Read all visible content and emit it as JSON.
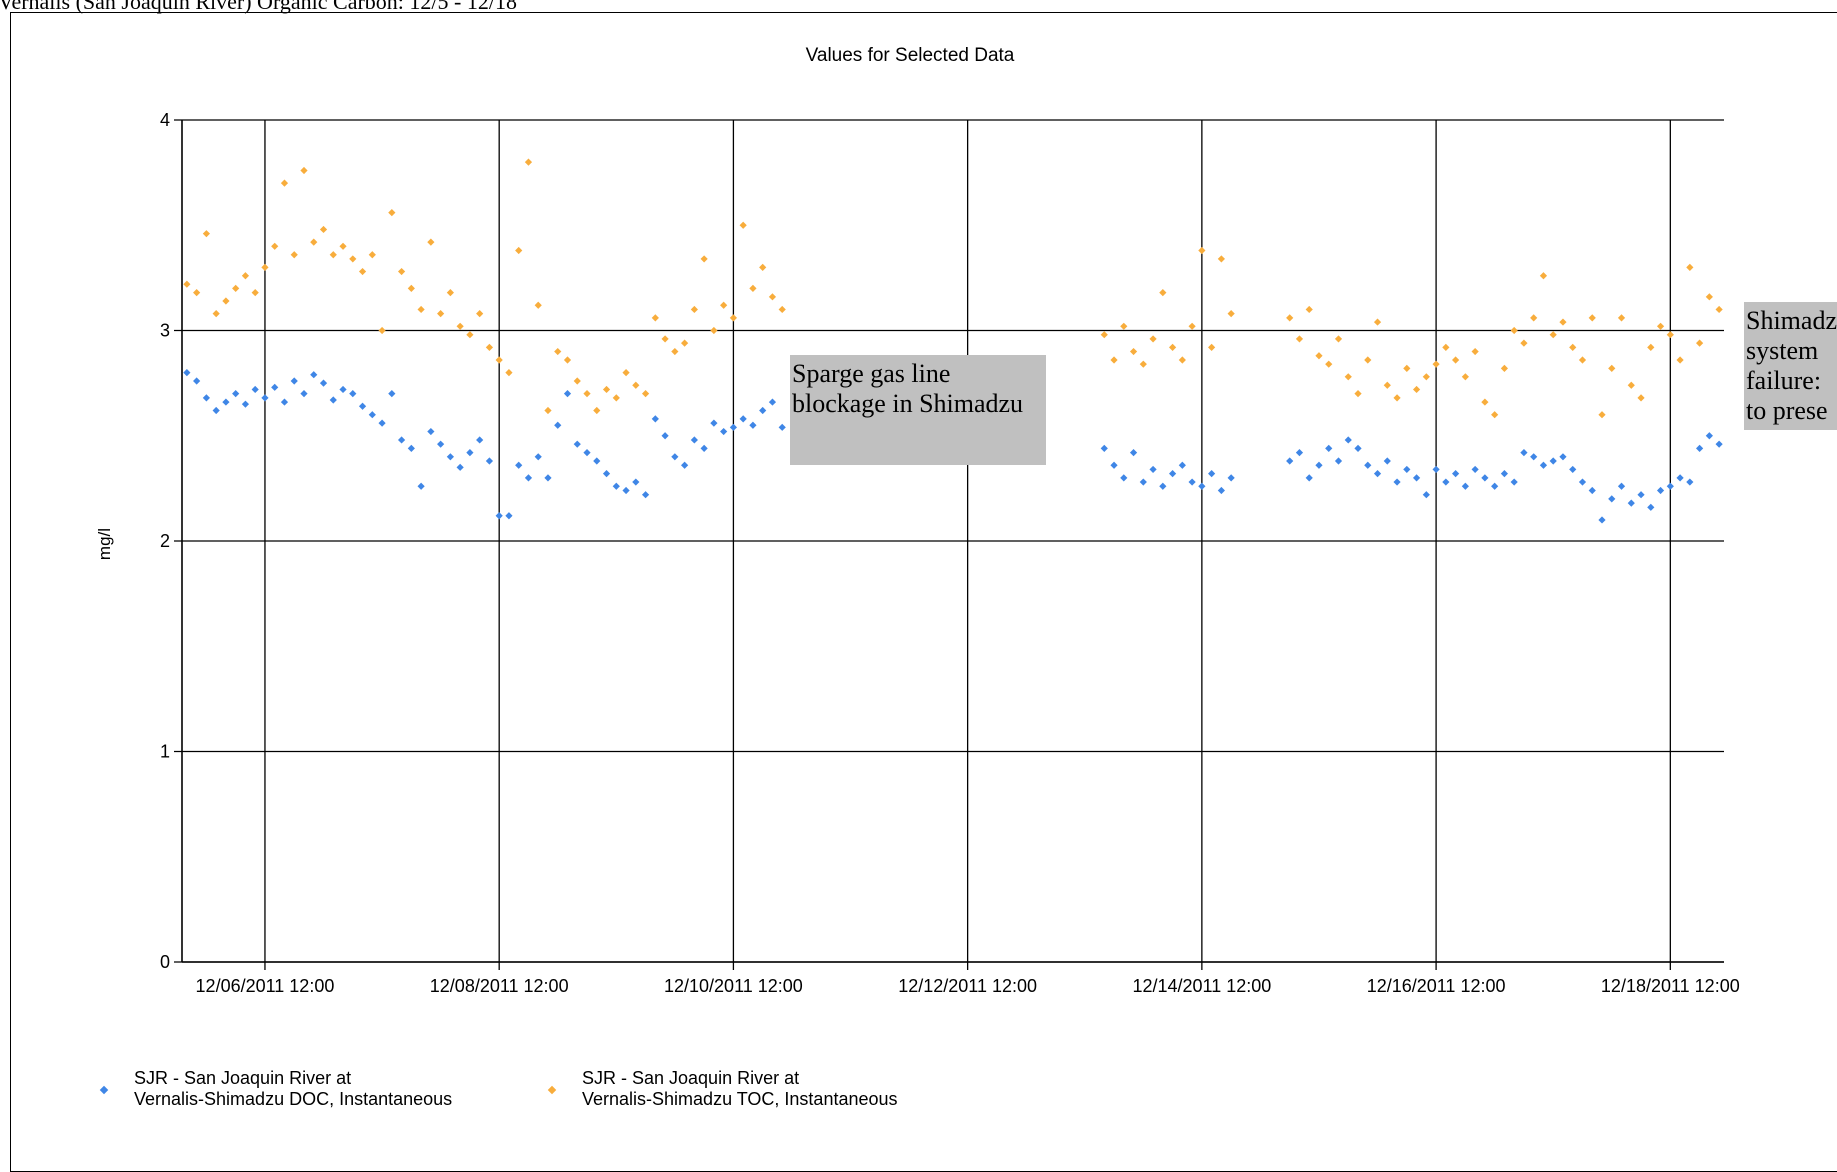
{
  "page_title": "Vernalis (San Joaquin River) Organic Carbon: 12/5 - 12/18",
  "annotations": [
    {
      "text": "Sparge gas line blockage in Shimadzu"
    },
    {
      "text": "Shimadzu system failure: to prese"
    }
  ],
  "colors": {
    "doc": "#3f86e6",
    "toc": "#f8ad3c",
    "note_bg": "#c0c0c0",
    "grid": "#000000"
  },
  "chart_data": {
    "type": "scatter",
    "title": "Values for Selected Data",
    "ylabel": "mg/l",
    "xlabel": "",
    "ylim": [
      0,
      4
    ],
    "yticks": [
      "0",
      "1",
      "2",
      "3",
      "4"
    ],
    "xlim": [
      "2011-12-05 19:00",
      "2011-12-18 23:00"
    ],
    "xticks": [
      "12/06/2011 12:00",
      "12/08/2011 12:00",
      "12/10/2011 12:00",
      "12/12/2011 12:00",
      "12/14/2011 12:00",
      "12/16/2011 12:00",
      "12/18/2011 12:00"
    ],
    "grid": true,
    "legend_position": "bottom-left",
    "series": [
      {
        "name": "SJR - San Joaquin River at Vernalis-Shimadzu DOC, Instantaneous",
        "color": "#3f86e6",
        "points": [
          [
            "2011-12-05 20:00",
            2.8
          ],
          [
            "2011-12-05 22:00",
            2.76
          ],
          [
            "2011-12-06 00:00",
            2.68
          ],
          [
            "2011-12-06 02:00",
            2.62
          ],
          [
            "2011-12-06 04:00",
            2.66
          ],
          [
            "2011-12-06 06:00",
            2.7
          ],
          [
            "2011-12-06 08:00",
            2.65
          ],
          [
            "2011-12-06 10:00",
            2.72
          ],
          [
            "2011-12-06 12:00",
            2.68
          ],
          [
            "2011-12-06 14:00",
            2.73
          ],
          [
            "2011-12-06 16:00",
            2.66
          ],
          [
            "2011-12-06 18:00",
            2.76
          ],
          [
            "2011-12-06 20:00",
            2.7
          ],
          [
            "2011-12-06 22:00",
            2.79
          ],
          [
            "2011-12-07 00:00",
            2.75
          ],
          [
            "2011-12-07 02:00",
            2.67
          ],
          [
            "2011-12-07 04:00",
            2.72
          ],
          [
            "2011-12-07 06:00",
            2.7
          ],
          [
            "2011-12-07 08:00",
            2.64
          ],
          [
            "2011-12-07 10:00",
            2.6
          ],
          [
            "2011-12-07 12:00",
            2.56
          ],
          [
            "2011-12-07 14:00",
            2.7
          ],
          [
            "2011-12-07 16:00",
            2.48
          ],
          [
            "2011-12-07 18:00",
            2.44
          ],
          [
            "2011-12-07 20:00",
            2.26
          ],
          [
            "2011-12-07 22:00",
            2.52
          ],
          [
            "2011-12-08 00:00",
            2.46
          ],
          [
            "2011-12-08 02:00",
            2.4
          ],
          [
            "2011-12-08 04:00",
            2.35
          ],
          [
            "2011-12-08 06:00",
            2.42
          ],
          [
            "2011-12-08 08:00",
            2.48
          ],
          [
            "2011-12-08 10:00",
            2.38
          ],
          [
            "2011-12-08 12:00",
            2.12
          ],
          [
            "2011-12-08 14:00",
            2.12
          ],
          [
            "2011-12-08 16:00",
            2.36
          ],
          [
            "2011-12-08 18:00",
            2.3
          ],
          [
            "2011-12-08 20:00",
            2.4
          ],
          [
            "2011-12-08 22:00",
            2.3
          ],
          [
            "2011-12-09 00:00",
            2.55
          ],
          [
            "2011-12-09 02:00",
            2.7
          ],
          [
            "2011-12-09 04:00",
            2.46
          ],
          [
            "2011-12-09 06:00",
            2.42
          ],
          [
            "2011-12-09 08:00",
            2.38
          ],
          [
            "2011-12-09 10:00",
            2.32
          ],
          [
            "2011-12-09 12:00",
            2.26
          ],
          [
            "2011-12-09 14:00",
            2.24
          ],
          [
            "2011-12-09 16:00",
            2.28
          ],
          [
            "2011-12-09 18:00",
            2.22
          ],
          [
            "2011-12-09 20:00",
            2.58
          ],
          [
            "2011-12-09 22:00",
            2.5
          ],
          [
            "2011-12-10 00:00",
            2.4
          ],
          [
            "2011-12-10 02:00",
            2.36
          ],
          [
            "2011-12-10 04:00",
            2.48
          ],
          [
            "2011-12-10 06:00",
            2.44
          ],
          [
            "2011-12-10 08:00",
            2.56
          ],
          [
            "2011-12-10 10:00",
            2.52
          ],
          [
            "2011-12-10 12:00",
            2.54
          ],
          [
            "2011-12-10 14:00",
            2.58
          ],
          [
            "2011-12-10 16:00",
            2.55
          ],
          [
            "2011-12-10 18:00",
            2.62
          ],
          [
            "2011-12-10 20:00",
            2.66
          ],
          [
            "2011-12-10 22:00",
            2.54
          ],
          [
            "2011-12-13 16:00",
            2.44
          ],
          [
            "2011-12-13 18:00",
            2.36
          ],
          [
            "2011-12-13 20:00",
            2.3
          ],
          [
            "2011-12-13 22:00",
            2.42
          ],
          [
            "2011-12-14 00:00",
            2.28
          ],
          [
            "2011-12-14 02:00",
            2.34
          ],
          [
            "2011-12-14 04:00",
            2.26
          ],
          [
            "2011-12-14 06:00",
            2.32
          ],
          [
            "2011-12-14 08:00",
            2.36
          ],
          [
            "2011-12-14 10:00",
            2.28
          ],
          [
            "2011-12-14 12:00",
            2.26
          ],
          [
            "2011-12-14 14:00",
            2.32
          ],
          [
            "2011-12-14 16:00",
            2.24
          ],
          [
            "2011-12-14 18:00",
            2.3
          ],
          [
            "2011-12-15 06:00",
            2.38
          ],
          [
            "2011-12-15 08:00",
            2.42
          ],
          [
            "2011-12-15 10:00",
            2.3
          ],
          [
            "2011-12-15 12:00",
            2.36
          ],
          [
            "2011-12-15 14:00",
            2.44
          ],
          [
            "2011-12-15 16:00",
            2.38
          ],
          [
            "2011-12-15 18:00",
            2.48
          ],
          [
            "2011-12-15 20:00",
            2.44
          ],
          [
            "2011-12-15 22:00",
            2.36
          ],
          [
            "2011-12-16 00:00",
            2.32
          ],
          [
            "2011-12-16 02:00",
            2.38
          ],
          [
            "2011-12-16 04:00",
            2.28
          ],
          [
            "2011-12-16 06:00",
            2.34
          ],
          [
            "2011-12-16 08:00",
            2.3
          ],
          [
            "2011-12-16 10:00",
            2.22
          ],
          [
            "2011-12-16 12:00",
            2.34
          ],
          [
            "2011-12-16 14:00",
            2.28
          ],
          [
            "2011-12-16 16:00",
            2.32
          ],
          [
            "2011-12-16 18:00",
            2.26
          ],
          [
            "2011-12-16 20:00",
            2.34
          ],
          [
            "2011-12-16 22:00",
            2.3
          ],
          [
            "2011-12-17 00:00",
            2.26
          ],
          [
            "2011-12-17 02:00",
            2.32
          ],
          [
            "2011-12-17 04:00",
            2.28
          ],
          [
            "2011-12-17 06:00",
            2.42
          ],
          [
            "2011-12-17 08:00",
            2.4
          ],
          [
            "2011-12-17 10:00",
            2.36
          ],
          [
            "2011-12-17 12:00",
            2.38
          ],
          [
            "2011-12-17 14:00",
            2.4
          ],
          [
            "2011-12-17 16:00",
            2.34
          ],
          [
            "2011-12-17 18:00",
            2.28
          ],
          [
            "2011-12-17 20:00",
            2.24
          ],
          [
            "2011-12-17 22:00",
            2.1
          ],
          [
            "2011-12-18 00:00",
            2.2
          ],
          [
            "2011-12-18 02:00",
            2.26
          ],
          [
            "2011-12-18 04:00",
            2.18
          ],
          [
            "2011-12-18 06:00",
            2.22
          ],
          [
            "2011-12-18 08:00",
            2.16
          ],
          [
            "2011-12-18 10:00",
            2.24
          ],
          [
            "2011-12-18 12:00",
            2.26
          ],
          [
            "2011-12-18 14:00",
            2.3
          ],
          [
            "2011-12-18 16:00",
            2.28
          ],
          [
            "2011-12-18 18:00",
            2.44
          ],
          [
            "2011-12-18 20:00",
            2.5
          ],
          [
            "2011-12-18 22:00",
            2.46
          ]
        ]
      },
      {
        "name": "SJR - San Joaquin River at Vernalis-Shimadzu TOC, Instantaneous",
        "color": "#f8ad3c",
        "points": [
          [
            "2011-12-05 20:00",
            3.22
          ],
          [
            "2011-12-05 22:00",
            3.18
          ],
          [
            "2011-12-06 00:00",
            3.46
          ],
          [
            "2011-12-06 02:00",
            3.08
          ],
          [
            "2011-12-06 04:00",
            3.14
          ],
          [
            "2011-12-06 06:00",
            3.2
          ],
          [
            "2011-12-06 08:00",
            3.26
          ],
          [
            "2011-12-06 10:00",
            3.18
          ],
          [
            "2011-12-06 12:00",
            3.3
          ],
          [
            "2011-12-06 14:00",
            3.4
          ],
          [
            "2011-12-06 16:00",
            3.7
          ],
          [
            "2011-12-06 18:00",
            3.36
          ],
          [
            "2011-12-06 20:00",
            3.76
          ],
          [
            "2011-12-06 22:00",
            3.42
          ],
          [
            "2011-12-07 00:00",
            3.48
          ],
          [
            "2011-12-07 02:00",
            3.36
          ],
          [
            "2011-12-07 04:00",
            3.4
          ],
          [
            "2011-12-07 06:00",
            3.34
          ],
          [
            "2011-12-07 08:00",
            3.28
          ],
          [
            "2011-12-07 10:00",
            3.36
          ],
          [
            "2011-12-07 12:00",
            3.0
          ],
          [
            "2011-12-07 14:00",
            3.56
          ],
          [
            "2011-12-07 16:00",
            3.28
          ],
          [
            "2011-12-07 18:00",
            3.2
          ],
          [
            "2011-12-07 20:00",
            3.1
          ],
          [
            "2011-12-07 22:00",
            3.42
          ],
          [
            "2011-12-08 00:00",
            3.08
          ],
          [
            "2011-12-08 02:00",
            3.18
          ],
          [
            "2011-12-08 04:00",
            3.02
          ],
          [
            "2011-12-08 06:00",
            2.98
          ],
          [
            "2011-12-08 08:00",
            3.08
          ],
          [
            "2011-12-08 10:00",
            2.92
          ],
          [
            "2011-12-08 12:00",
            2.86
          ],
          [
            "2011-12-08 14:00",
            2.8
          ],
          [
            "2011-12-08 16:00",
            3.38
          ],
          [
            "2011-12-08 18:00",
            3.8
          ],
          [
            "2011-12-08 20:00",
            3.12
          ],
          [
            "2011-12-08 22:00",
            2.62
          ],
          [
            "2011-12-09 00:00",
            2.9
          ],
          [
            "2011-12-09 02:00",
            2.86
          ],
          [
            "2011-12-09 04:00",
            2.76
          ],
          [
            "2011-12-09 06:00",
            2.7
          ],
          [
            "2011-12-09 08:00",
            2.62
          ],
          [
            "2011-12-09 10:00",
            2.72
          ],
          [
            "2011-12-09 12:00",
            2.68
          ],
          [
            "2011-12-09 14:00",
            2.8
          ],
          [
            "2011-12-09 16:00",
            2.74
          ],
          [
            "2011-12-09 18:00",
            2.7
          ],
          [
            "2011-12-09 20:00",
            3.06
          ],
          [
            "2011-12-09 22:00",
            2.96
          ],
          [
            "2011-12-10 00:00",
            2.9
          ],
          [
            "2011-12-10 02:00",
            2.94
          ],
          [
            "2011-12-10 04:00",
            3.1
          ],
          [
            "2011-12-10 06:00",
            3.34
          ],
          [
            "2011-12-10 08:00",
            3.0
          ],
          [
            "2011-12-10 10:00",
            3.12
          ],
          [
            "2011-12-10 12:00",
            3.06
          ],
          [
            "2011-12-10 14:00",
            3.5
          ],
          [
            "2011-12-10 16:00",
            3.2
          ],
          [
            "2011-12-10 18:00",
            3.3
          ],
          [
            "2011-12-10 20:00",
            3.16
          ],
          [
            "2011-12-10 22:00",
            3.1
          ],
          [
            "2011-12-13 16:00",
            2.98
          ],
          [
            "2011-12-13 18:00",
            2.86
          ],
          [
            "2011-12-13 20:00",
            3.02
          ],
          [
            "2011-12-13 22:00",
            2.9
          ],
          [
            "2011-12-14 00:00",
            2.84
          ],
          [
            "2011-12-14 02:00",
            2.96
          ],
          [
            "2011-12-14 04:00",
            3.18
          ],
          [
            "2011-12-14 06:00",
            2.92
          ],
          [
            "2011-12-14 08:00",
            2.86
          ],
          [
            "2011-12-14 10:00",
            3.02
          ],
          [
            "2011-12-14 12:00",
            3.38
          ],
          [
            "2011-12-14 14:00",
            2.92
          ],
          [
            "2011-12-14 16:00",
            3.34
          ],
          [
            "2011-12-14 18:00",
            3.08
          ],
          [
            "2011-12-15 06:00",
            3.06
          ],
          [
            "2011-12-15 08:00",
            2.96
          ],
          [
            "2011-12-15 10:00",
            3.1
          ],
          [
            "2011-12-15 12:00",
            2.88
          ],
          [
            "2011-12-15 14:00",
            2.84
          ],
          [
            "2011-12-15 16:00",
            2.96
          ],
          [
            "2011-12-15 18:00",
            2.78
          ],
          [
            "2011-12-15 20:00",
            2.7
          ],
          [
            "2011-12-15 22:00",
            2.86
          ],
          [
            "2011-12-16 00:00",
            3.04
          ],
          [
            "2011-12-16 02:00",
            2.74
          ],
          [
            "2011-12-16 04:00",
            2.68
          ],
          [
            "2011-12-16 06:00",
            2.82
          ],
          [
            "2011-12-16 08:00",
            2.72
          ],
          [
            "2011-12-16 10:00",
            2.78
          ],
          [
            "2011-12-16 12:00",
            2.84
          ],
          [
            "2011-12-16 14:00",
            2.92
          ],
          [
            "2011-12-16 16:00",
            2.86
          ],
          [
            "2011-12-16 18:00",
            2.78
          ],
          [
            "2011-12-16 20:00",
            2.9
          ],
          [
            "2011-12-16 22:00",
            2.66
          ],
          [
            "2011-12-17 00:00",
            2.6
          ],
          [
            "2011-12-17 02:00",
            2.82
          ],
          [
            "2011-12-17 04:00",
            3.0
          ],
          [
            "2011-12-17 06:00",
            2.94
          ],
          [
            "2011-12-17 08:00",
            3.06
          ],
          [
            "2011-12-17 10:00",
            3.26
          ],
          [
            "2011-12-17 12:00",
            2.98
          ],
          [
            "2011-12-17 14:00",
            3.04
          ],
          [
            "2011-12-17 16:00",
            2.92
          ],
          [
            "2011-12-17 18:00",
            2.86
          ],
          [
            "2011-12-17 20:00",
            3.06
          ],
          [
            "2011-12-17 22:00",
            2.6
          ],
          [
            "2011-12-18 00:00",
            2.82
          ],
          [
            "2011-12-18 02:00",
            3.06
          ],
          [
            "2011-12-18 04:00",
            2.74
          ],
          [
            "2011-12-18 06:00",
            2.68
          ],
          [
            "2011-12-18 08:00",
            2.92
          ],
          [
            "2011-12-18 10:00",
            3.02
          ],
          [
            "2011-12-18 12:00",
            2.98
          ],
          [
            "2011-12-18 14:00",
            2.86
          ],
          [
            "2011-12-18 16:00",
            3.3
          ],
          [
            "2011-12-18 18:00",
            2.94
          ],
          [
            "2011-12-18 20:00",
            3.16
          ],
          [
            "2011-12-18 22:00",
            3.1
          ]
        ]
      }
    ]
  }
}
